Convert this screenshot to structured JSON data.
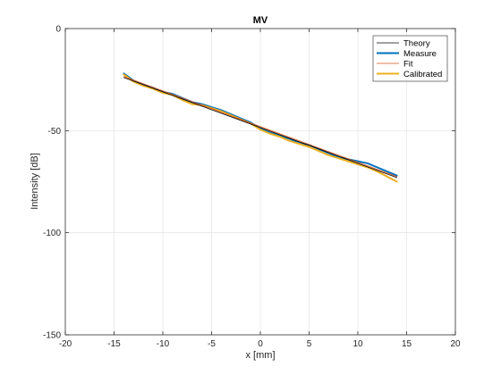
{
  "chart_data": {
    "type": "line",
    "title": "MV",
    "xlabel": "x [mm]",
    "ylabel": "Intensity [dB]",
    "xlim": [
      -20,
      20
    ],
    "ylim": [
      -150,
      0
    ],
    "xticks": [
      -20,
      -15,
      -10,
      -5,
      0,
      5,
      10,
      15,
      20
    ],
    "yticks": [
      0,
      -50,
      -100,
      -150
    ],
    "grid": true,
    "legend_position": "top-right",
    "series": [
      {
        "name": "Theory",
        "color": "#000000",
        "style": "solid-thin",
        "x": [
          -14,
          14
        ],
        "y": [
          -24,
          -73
        ]
      },
      {
        "name": "Measure",
        "color": "#0072BD",
        "style": "solid-thick",
        "x": [
          -14,
          -13,
          -12,
          -11,
          -10,
          -9,
          -8,
          -7,
          -6,
          -5,
          -4,
          -3,
          -2,
          -1,
          0,
          1,
          2,
          3,
          4,
          5,
          6,
          7,
          8,
          9,
          10,
          11,
          12,
          13,
          14
        ],
        "y": [
          -22,
          -25.5,
          -27.5,
          -29,
          -31,
          -32,
          -34,
          -36,
          -37,
          -38.5,
          -40,
          -42,
          -44,
          -46,
          -49,
          -51,
          -52.5,
          -54,
          -56,
          -57,
          -59,
          -61,
          -63,
          -64,
          -65,
          -66,
          -68,
          -70,
          -72
        ]
      },
      {
        "name": "Fit",
        "color": "#D95319",
        "style": "solid-thin",
        "x": [
          -14,
          14
        ],
        "y": [
          -23.5,
          -72.5
        ]
      },
      {
        "name": "Calibrated",
        "color": "#EDB120",
        "style": "solid-thick",
        "x": [
          -14,
          -13,
          -12,
          -11,
          -10,
          -9,
          -8,
          -7,
          -6,
          -5,
          -4,
          -3,
          -2,
          -1,
          0,
          1,
          2,
          3,
          4,
          5,
          6,
          7,
          8,
          9,
          10,
          11,
          12,
          13,
          14
        ],
        "y": [
          -22.5,
          -26,
          -28,
          -29.5,
          -31.5,
          -32.5,
          -35,
          -37,
          -37.5,
          -39,
          -40.5,
          -42.5,
          -44.5,
          -46.5,
          -49.5,
          -51.5,
          -53,
          -55,
          -56.5,
          -58,
          -60,
          -62,
          -63.5,
          -65,
          -66.5,
          -68,
          -70,
          -72.5,
          -75
        ]
      }
    ]
  }
}
